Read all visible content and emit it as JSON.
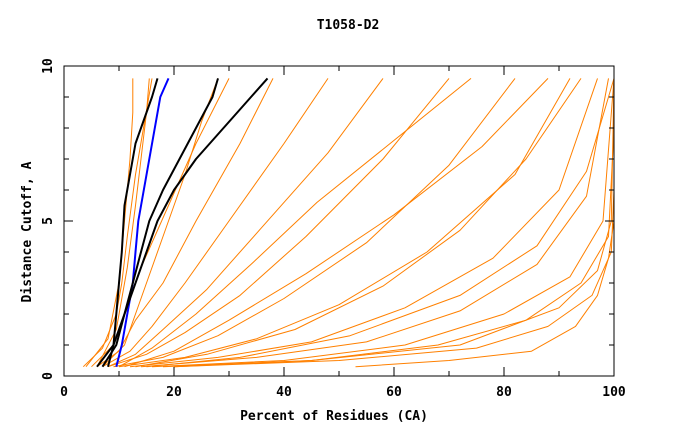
{
  "chart_data": {
    "type": "line",
    "title": "T1058-D2",
    "xlabel": "Percent of Residues (CA)",
    "ylabel": "Distance Cutoff, A",
    "xlim": [
      0,
      100
    ],
    "ylim": [
      0,
      10
    ],
    "x_ticks": [
      0,
      20,
      40,
      60,
      80,
      100
    ],
    "y_ticks": [
      0,
      5,
      10
    ],
    "colors": {
      "bulk": "#ff8000",
      "highlight_black": "#000000",
      "highlight_blue": "#0000ff",
      "axis": "#000000"
    },
    "y_max_curve": 9.6,
    "series": [
      {
        "group": "bulk",
        "color": "#ff8000",
        "x": [
          3.5,
          7.0,
          9.5,
          10.5,
          11.5,
          13.0,
          16.0
        ],
        "y": [
          0.3,
          0.9,
          2.0,
          3.0,
          4.5,
          6.5,
          9.6
        ]
      },
      {
        "group": "bulk",
        "color": "#ff8000",
        "x": [
          4.0,
          8.0,
          10.0,
          11.0,
          12.0,
          12.5,
          12.5
        ],
        "y": [
          0.3,
          1.2,
          3.0,
          5.0,
          7.0,
          8.5,
          9.6
        ]
      },
      {
        "group": "bulk",
        "color": "#ff8000",
        "x": [
          5.0,
          9.0,
          11.0,
          14.0,
          19.0,
          24.0,
          30.0
        ],
        "y": [
          0.3,
          1.0,
          2.0,
          3.5,
          5.5,
          7.5,
          9.6
        ]
      },
      {
        "group": "bulk",
        "color": "#ff8000",
        "x": [
          6.0,
          10.0,
          13.0,
          18.0,
          24.0,
          32.0,
          38.0
        ],
        "y": [
          0.3,
          0.8,
          1.8,
          3.0,
          5.0,
          7.5,
          9.6
        ]
      },
      {
        "group": "bulk",
        "color": "#ff8000",
        "x": [
          7.0,
          12.0,
          16.0,
          22.0,
          30.0,
          40.0,
          48.0
        ],
        "y": [
          0.3,
          0.8,
          1.6,
          3.0,
          5.0,
          7.5,
          9.6
        ]
      },
      {
        "group": "bulk",
        "color": "#ff8000",
        "x": [
          8.0,
          13.0,
          18.0,
          26.0,
          36.0,
          48.0,
          58.0
        ],
        "y": [
          0.3,
          0.7,
          1.5,
          2.8,
          4.8,
          7.2,
          9.6
        ]
      },
      {
        "group": "bulk",
        "color": "#ff8000",
        "x": [
          8.0,
          15.0,
          22.0,
          32.0,
          44.0,
          58.0,
          70.0
        ],
        "y": [
          0.3,
          0.7,
          1.4,
          2.6,
          4.5,
          7.0,
          9.6
        ]
      },
      {
        "group": "bulk",
        "color": "#ff8000",
        "x": [
          9.0,
          18.0,
          28.0,
          40.0,
          55.0,
          70.0,
          82.0
        ],
        "y": [
          0.3,
          0.6,
          1.3,
          2.5,
          4.3,
          6.8,
          9.6
        ]
      },
      {
        "group": "bulk",
        "color": "#ff8000",
        "x": [
          10.0,
          22.0,
          35.0,
          50.0,
          66.0,
          82.0,
          92.0
        ],
        "y": [
          0.3,
          0.6,
          1.2,
          2.3,
          4.0,
          6.5,
          9.6
        ]
      },
      {
        "group": "bulk",
        "color": "#ff8000",
        "x": [
          12.0,
          28.0,
          45.0,
          62.0,
          78.0,
          90.0,
          97.0
        ],
        "y": [
          0.3,
          0.6,
          1.1,
          2.2,
          3.8,
          6.0,
          9.6
        ]
      },
      {
        "group": "bulk",
        "color": "#ff8000",
        "x": [
          14.0,
          35.0,
          55.0,
          72.0,
          86.0,
          95.0,
          99.0
        ],
        "y": [
          0.3,
          0.6,
          1.1,
          2.1,
          3.6,
          5.8,
          9.6
        ]
      },
      {
        "group": "bulk",
        "color": "#ff8000",
        "x": [
          16.0,
          40.0,
          62.0,
          80.0,
          92.0,
          98.0,
          100.0
        ],
        "y": [
          0.3,
          0.5,
          1.0,
          2.0,
          3.2,
          5.0,
          9.6
        ]
      },
      {
        "group": "bulk",
        "color": "#ff8000",
        "x": [
          18.0,
          45.0,
          68.0,
          84.0,
          94.0,
          99.0,
          100.0
        ],
        "y": [
          0.3,
          0.5,
          1.0,
          1.8,
          3.0,
          4.5,
          8.0
        ]
      },
      {
        "group": "bulk",
        "color": "#ff8000",
        "x": [
          20.0,
          50.0,
          75.0,
          88.0,
          96.0,
          99.5,
          100.0
        ],
        "y": [
          0.3,
          0.5,
          0.9,
          1.6,
          2.6,
          4.0,
          6.0
        ]
      },
      {
        "group": "bulk",
        "color": "#ff8000",
        "x": [
          53.0,
          70.0,
          85.0,
          93.0,
          97.0,
          99.0,
          100.0
        ],
        "y": [
          0.3,
          0.5,
          0.8,
          1.6,
          2.6,
          3.8,
          5.0
        ]
      },
      {
        "group": "bulk",
        "color": "#ff8000",
        "x": [
          20.0,
          45.0,
          72.0,
          90.0,
          97.0,
          99.5,
          100.0
        ],
        "y": [
          0.3,
          0.5,
          1.0,
          2.2,
          3.4,
          5.0,
          9.6
        ]
      },
      {
        "group": "bulk",
        "color": "#ff8000",
        "x": [
          15.0,
          32.0,
          52.0,
          72.0,
          86.0,
          95.0,
          100.0
        ],
        "y": [
          0.3,
          0.6,
          1.3,
          2.6,
          4.2,
          6.6,
          9.6
        ]
      },
      {
        "group": "bulk",
        "color": "#ff8000",
        "x": [
          11.0,
          20.0,
          30.0,
          44.0,
          60.0,
          76.0,
          88.0
        ],
        "y": [
          0.3,
          0.8,
          1.8,
          3.3,
          5.2,
          7.4,
          9.6
        ]
      },
      {
        "group": "bulk",
        "color": "#ff8000",
        "x": [
          7.0,
          11.0,
          14.0,
          18.0,
          22.0,
          25.0,
          28.0
        ],
        "y": [
          0.3,
          1.0,
          2.5,
          4.5,
          6.5,
          8.2,
          9.6
        ]
      },
      {
        "group": "bulk",
        "color": "#ff8000",
        "x": [
          10.0,
          16.0,
          24.0,
          34.0,
          46.0,
          60.0,
          74.0
        ],
        "y": [
          0.3,
          0.9,
          2.0,
          3.6,
          5.6,
          7.6,
          9.6
        ]
      },
      {
        "group": "bulk",
        "color": "#ff8000",
        "x": [
          6.0,
          9.5,
          11.5,
          13.0,
          14.0,
          15.0,
          15.5
        ],
        "y": [
          0.3,
          1.5,
          3.5,
          5.5,
          7.0,
          8.5,
          9.6
        ]
      },
      {
        "group": "bulk",
        "color": "#ff8000",
        "x": [
          13.0,
          26.0,
          42.0,
          58.0,
          72.0,
          84.0,
          94.0
        ],
        "y": [
          0.3,
          0.7,
          1.5,
          2.9,
          4.7,
          7.0,
          9.6
        ]
      },
      {
        "group": "highlight_black",
        "color": "#000000",
        "x": [
          8.0,
          9.0,
          9.5,
          10.0,
          10.5,
          11.0,
          13.0,
          15.0,
          16.0,
          17.0
        ],
        "y": [
          0.3,
          1.0,
          2.0,
          3.0,
          4.0,
          5.5,
          7.5,
          8.5,
          9.0,
          9.6
        ]
      },
      {
        "group": "highlight_black",
        "color": "#000000",
        "x": [
          7.0,
          9.5,
          11.0,
          12.5,
          14.0,
          15.5,
          18.0,
          21.0,
          24.0,
          27.0,
          28.0
        ],
        "y": [
          0.3,
          1.0,
          2.0,
          3.0,
          4.0,
          5.0,
          6.0,
          7.0,
          8.0,
          9.0,
          9.6
        ]
      },
      {
        "group": "highlight_black",
        "color": "#000000",
        "x": [
          6.0,
          9.0,
          11.0,
          13.0,
          15.0,
          17.0,
          20.0,
          24.0,
          29.0,
          34.0,
          37.0
        ],
        "y": [
          0.3,
          1.0,
          2.0,
          3.0,
          4.0,
          5.0,
          6.0,
          7.0,
          8.0,
          9.0,
          9.6
        ]
      },
      {
        "group": "highlight_blue",
        "color": "#0000ff",
        "x": [
          9.5,
          10.5,
          11.5,
          12.5,
          13.0,
          13.5,
          14.5,
          15.5,
          16.5,
          17.5,
          19.0
        ],
        "y": [
          0.3,
          1.0,
          2.0,
          3.0,
          4.0,
          5.0,
          6.0,
          7.0,
          8.0,
          9.0,
          9.6
        ]
      }
    ]
  }
}
